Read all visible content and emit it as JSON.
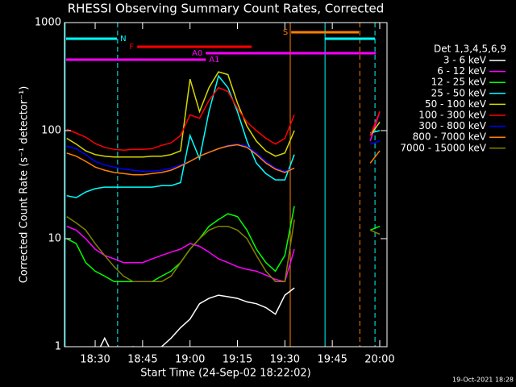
{
  "chart_data": {
    "type": "line",
    "title": "RHESSI Observing Summary Count Rates, Corrected",
    "y_label": "Corrected Count Rate (s⁻¹ detector⁻¹)",
    "x_label": "Start Time (24-Sep-02 18:22:02)",
    "legend_title": "Det 1,3,4,5,6,9",
    "footer": "19-Oct-2021 18:28",
    "log_y": true,
    "xlim": [
      20.3,
      122.3
    ],
    "xticks": [
      {
        "value": 30,
        "label": "18:30"
      },
      {
        "value": 45,
        "label": "18:45"
      },
      {
        "value": 60,
        "label": "19:00"
      },
      {
        "value": 75,
        "label": "19:15"
      },
      {
        "value": 90,
        "label": "19:30"
      },
      {
        "value": 105,
        "label": "19:45"
      },
      {
        "value": 120,
        "label": "20:00"
      }
    ],
    "ylim": [
      1,
      1000
    ],
    "yticks": [
      1,
      10,
      100,
      1000
    ],
    "x": [
      21,
      24,
      27,
      30,
      33,
      36,
      39,
      42,
      45,
      48,
      51,
      54,
      57,
      60,
      63,
      66,
      69,
      72,
      75,
      78,
      81,
      84,
      87,
      90,
      93,
      96,
      99,
      102,
      105,
      108,
      111,
      114,
      117,
      120
    ],
    "series": [
      {
        "name": "3 - 6 keV",
        "color": "#ffffff",
        "values": [
          0.8,
          0.8,
          0.8,
          0.8,
          1.2,
          0.8,
          0.8,
          1,
          0.8,
          0.9,
          1,
          1.2,
          1.5,
          1.8,
          2.5,
          2.8,
          3,
          2.9,
          2.8,
          2.6,
          2.5,
          2.3,
          2,
          3,
          3.5,
          null,
          null,
          null,
          null,
          null,
          null,
          null,
          null,
          null
        ]
      },
      {
        "name": "6 - 12 keV",
        "color": "#ff00ff",
        "values": [
          13,
          12,
          10,
          8,
          7,
          6.5,
          6,
          6,
          6,
          6.5,
          7,
          7.5,
          8,
          9,
          8.5,
          7.5,
          6.5,
          6,
          5.5,
          5.2,
          5,
          4.6,
          4.2,
          4,
          8,
          null,
          null,
          null,
          null,
          null,
          null,
          null,
          80,
          150
        ]
      },
      {
        "name": "12 - 25 keV",
        "color": "#00ff00",
        "values": [
          10,
          9,
          6,
          5,
          4.5,
          4,
          4,
          4,
          4,
          4,
          4.5,
          5,
          6,
          8,
          10,
          13,
          15,
          17,
          16,
          12,
          8,
          6,
          5,
          7,
          20,
          null,
          null,
          null,
          null,
          null,
          null,
          null,
          12,
          13
        ]
      },
      {
        "name": "25 - 50 keV",
        "color": "#00ffff",
        "values": [
          25,
          24,
          27,
          29,
          30,
          30,
          30,
          30,
          30,
          30,
          31,
          31,
          33,
          90,
          55,
          150,
          320,
          250,
          150,
          80,
          50,
          40,
          35,
          35,
          60,
          null,
          null,
          null,
          null,
          null,
          null,
          null,
          95,
          100
        ]
      },
      {
        "name": "50 - 100 keV",
        "color": "#d8d800",
        "values": [
          85,
          75,
          65,
          60,
          58,
          57,
          57,
          57,
          57,
          58,
          58,
          60,
          65,
          300,
          150,
          250,
          350,
          330,
          180,
          110,
          80,
          65,
          58,
          62,
          100,
          null,
          null,
          null,
          null,
          null,
          null,
          null,
          90,
          120
        ]
      },
      {
        "name": "100 - 300 keV",
        "color": "#ff0000",
        "values": [
          103,
          95,
          87,
          76,
          70,
          67,
          66,
          67,
          67,
          68,
          73,
          77,
          90,
          140,
          130,
          190,
          250,
          230,
          160,
          120,
          100,
          85,
          75,
          85,
          140,
          null,
          null,
          null,
          null,
          null,
          null,
          null,
          90,
          150
        ]
      },
      {
        "name": "300 - 800 keV",
        "color": "#0000ff",
        "values": [
          72,
          68,
          60,
          52,
          48,
          46,
          44,
          43,
          42,
          42,
          43,
          45,
          48,
          52,
          58,
          63,
          68,
          73,
          75,
          72,
          62,
          52,
          45,
          42,
          45,
          null,
          null,
          null,
          null,
          null,
          null,
          null,
          75,
          80
        ]
      },
      {
        "name": "800 - 7000 keV",
        "color": "#ff8000",
        "values": [
          62,
          58,
          52,
          46,
          43,
          41,
          40,
          39,
          39,
          40,
          41,
          43,
          47,
          52,
          58,
          63,
          68,
          72,
          74,
          70,
          60,
          50,
          44,
          41,
          45,
          null,
          null,
          null,
          null,
          null,
          null,
          null,
          50,
          65
        ]
      },
      {
        "name": "7000 - 15000 keV",
        "color": "#808000",
        "values": [
          16,
          14,
          12,
          9,
          7,
          5.5,
          4.5,
          4,
          4,
          4,
          4,
          4.5,
          6,
          8,
          10,
          12,
          13,
          13,
          12,
          10,
          7,
          5,
          4,
          4,
          15,
          null,
          null,
          null,
          null,
          null,
          null,
          null,
          12,
          11
        ]
      }
    ],
    "flags": [
      {
        "label": "S",
        "color": "#ff8000",
        "segments": [
          [
            92,
            113.4
          ]
        ]
      },
      {
        "label": "N",
        "color": "#00ffff",
        "segments": [
          [
            20.8,
            36.9
          ],
          [
            102.7,
            118.5
          ]
        ]
      },
      {
        "label": "F",
        "color": "#ff0000",
        "segments": [
          [
            43.3,
            79.5
          ]
        ]
      },
      {
        "label": "A0",
        "color": "#ff00ff",
        "segments": [
          [
            65,
            118.8
          ]
        ]
      },
      {
        "label": "A1",
        "color": "#ff00ff",
        "segments": [
          [
            20.8,
            65
          ]
        ]
      }
    ],
    "vlines": [
      {
        "x": 20.5,
        "color": "#00ffff",
        "dash": false
      },
      {
        "x": 37.1,
        "color": "#00ffff",
        "dash": true
      },
      {
        "x": 91.7,
        "color": "#ff8000",
        "dash": false
      },
      {
        "x": 102.7,
        "color": "#00ffff",
        "dash": false
      },
      {
        "x": 113.7,
        "color": "#ff8000",
        "dash": true
      },
      {
        "x": 118.5,
        "color": "#00ffff",
        "dash": true
      }
    ]
  }
}
